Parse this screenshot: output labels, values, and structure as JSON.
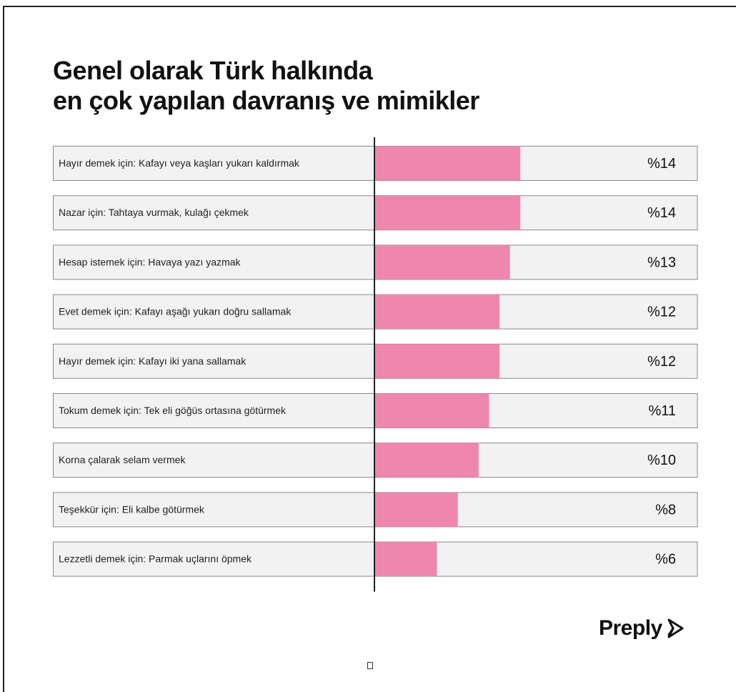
{
  "title_lines": [
    "Genel olarak Türk halkında",
    "en çok yapılan davranış ve mimikler"
  ],
  "brand": {
    "name": "Preply",
    "icon": "preply-arrow-icon"
  },
  "colors": {
    "bar": "#ef86ad",
    "track": "#f2f2f2",
    "border": "#888888"
  },
  "chart_data": {
    "type": "bar",
    "orientation": "horizontal",
    "categories": [
      "Hayır demek için: Kafayı veya kaşları yukarı kaldırmak",
      "Nazar için: Tahtaya vurmak, kulağı çekmek",
      "Hesap istemek için: Havaya yazı yazmak",
      "Evet demek için: Kafayı aşağı yukarı doğru sallamak",
      "Hayır demek için: Kafayı iki yana sallamak",
      "Tokum demek için: Tek eli göğüs ortasına götürmek",
      "Korna çalarak selam vermek",
      "Teşekkür için: Eli kalbe götürmek",
      "Lezzetli demek için: Parmak uçlarını öpmek"
    ],
    "values": [
      14,
      14,
      13,
      12,
      12,
      11,
      10,
      8,
      6
    ],
    "value_labels": [
      "%14",
      "%14",
      "%13",
      "%12",
      "%12",
      "%11",
      "%10",
      "%8",
      "%6"
    ],
    "xlim": [
      0,
      31
    ],
    "grid": false
  }
}
